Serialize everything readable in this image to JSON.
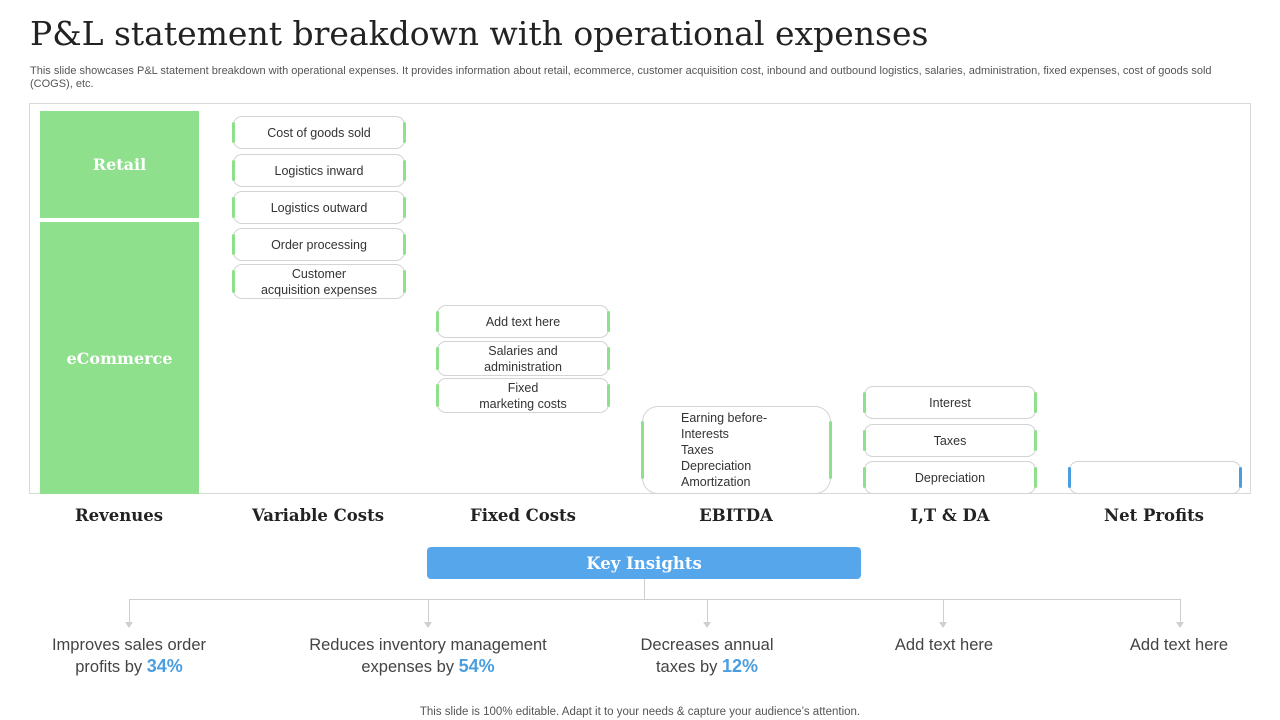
{
  "title": "P&L statement breakdown with operational expenses",
  "subtitle": "This slide showcases P&L statement breakdown with operational expenses. It provides information about retail, ecommerce, customer acquisition cost, inbound and outbound logistics, salaries, administration, fixed expenses, cost of goods sold (COGS), etc.",
  "revenues": {
    "retail": "Retail",
    "ecommerce": "eCommerce"
  },
  "variable_costs": [
    "Cost of goods sold",
    "Logistics inward",
    "Logistics outward",
    "Order processing",
    "Customer\nacquisition expenses"
  ],
  "fixed_costs": [
    "Add text here",
    "Salaries and\nadministration",
    "Fixed\nmarketing costs"
  ],
  "ebitda": "Earning before-\nInterests\nTaxes\nDepreciation\nAmortization",
  "itda": [
    "Interest",
    "Taxes",
    "Depreciation"
  ],
  "net_profits": "",
  "columns": [
    "Revenues",
    "Variable Costs",
    "Fixed Costs",
    "EBITDA",
    "I,T & DA",
    "Net Profits"
  ],
  "key_insights_label": "Key Insights",
  "insights": [
    {
      "text": "Improves sales order\nprofits by ",
      "value": "34%"
    },
    {
      "text": "Reduces inventory management\nexpenses by ",
      "value": "54%"
    },
    {
      "text": "Decreases annual\ntaxes by ",
      "value": "12%"
    },
    {
      "text": "Add text here",
      "value": ""
    },
    {
      "text": "Add text here",
      "value": ""
    }
  ],
  "colors": {
    "green": "#8ee08c",
    "blue": "#56a6ec"
  },
  "footer": "This slide is 100% editable. Adapt it to your needs & capture your audience’s attention."
}
